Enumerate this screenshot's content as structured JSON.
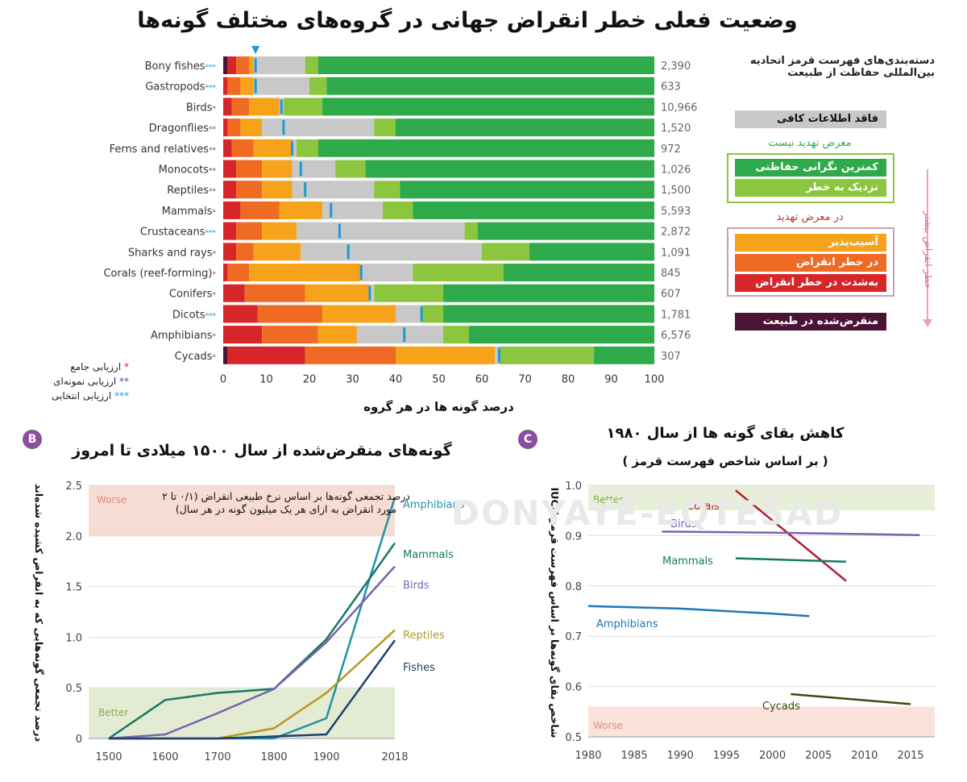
{
  "title": "وضعیت فعلی خطر انقراض جهانی در گروه‌های مختلف گونه‌ها",
  "chart_a": {
    "type": "bar",
    "stacked": true,
    "orientation": "horizontal",
    "xlabel": "درصد گونه ها در هر گروه",
    "xlim": [
      0,
      100
    ],
    "xticks": [
      "0",
      "10",
      "20",
      "30",
      "40",
      "50",
      "60",
      "70",
      "80",
      "90",
      "100"
    ],
    "segment_order": [
      "extinct",
      "critically_endangered",
      "endangered",
      "vulnerable",
      "data_deficient",
      "near_threatened",
      "least_concern"
    ],
    "colors": {
      "extinct": "#4a1535",
      "critically_endangered": "#d7262a",
      "endangered": "#ef6a22",
      "vulnerable": "#f7a21b",
      "data_deficient": "#c8c8c8",
      "near_threatened": "#8cc63e",
      "least_concern": "#2eaa4a",
      "marker": "#1b9ad6"
    },
    "groups": [
      {
        "name": "Bony fishes",
        "stars": "***",
        "count": "2,390",
        "segments": [
          1,
          2,
          3,
          1,
          12,
          3,
          78
        ],
        "marker": 7.5
      },
      {
        "name": "Gastropods",
        "stars": "***",
        "count": "633",
        "segments": [
          0,
          1,
          3,
          3,
          13,
          4,
          76
        ],
        "marker": 7.5
      },
      {
        "name": "Birds",
        "stars": "*",
        "count": "10,966",
        "segments": [
          0,
          2,
          4,
          7,
          1,
          9,
          77
        ],
        "marker": 13.5
      },
      {
        "name": "Dragonflies",
        "stars": "**",
        "count": "1,520",
        "segments": [
          0,
          1,
          3,
          5,
          26,
          5,
          60
        ],
        "marker": 14
      },
      {
        "name": "Ferns and relatives",
        "stars": "**",
        "count": "972",
        "segments": [
          0,
          2,
          5,
          9,
          1,
          5,
          78
        ],
        "marker": 16
      },
      {
        "name": "Monocots",
        "stars": "**",
        "count": "1,026",
        "segments": [
          0,
          3,
          6,
          7,
          10,
          7,
          67
        ],
        "marker": 18
      },
      {
        "name": "Reptiles",
        "stars": "**",
        "count": "1,500",
        "segments": [
          0,
          3,
          6,
          7,
          19,
          6,
          59
        ],
        "marker": 19
      },
      {
        "name": "Mammals",
        "stars": "*",
        "count": "5,593",
        "segments": [
          0,
          4,
          9,
          10,
          14,
          7,
          56
        ],
        "marker": 25
      },
      {
        "name": "Crustaceans",
        "stars": "***",
        "count": "2,872",
        "segments": [
          0,
          3,
          6,
          8,
          39,
          3,
          41
        ],
        "marker": 27
      },
      {
        "name": "Sharks and rays",
        "stars": "*",
        "count": "1,091",
        "segments": [
          0,
          3,
          4,
          11,
          42,
          11,
          29
        ],
        "marker": 29
      },
      {
        "name": "Corals (reef-forming)",
        "stars": "*",
        "count": "845",
        "segments": [
          0,
          1,
          5,
          26,
          12,
          21,
          35
        ],
        "marker": 32
      },
      {
        "name": "Conifers",
        "stars": "*",
        "count": "607",
        "segments": [
          0,
          5,
          14,
          15,
          1,
          16,
          49
        ],
        "marker": 34
      },
      {
        "name": "Dicots",
        "stars": "***",
        "count": "1,781",
        "segments": [
          0,
          8,
          15,
          17,
          6,
          5,
          49
        ],
        "marker": 46
      },
      {
        "name": "Amphibians",
        "stars": "*",
        "count": "6,576",
        "segments": [
          0,
          9,
          13,
          9,
          20,
          6,
          43
        ],
        "marker": 42
      },
      {
        "name": "Cycads",
        "stars": "*",
        "count": "307",
        "segments": [
          1,
          18,
          21,
          23,
          1,
          22,
          14
        ],
        "marker": 64
      }
    ],
    "star_key": [
      {
        "stars": "*",
        "label": "ارزیابی جامع",
        "color": "#d7262a"
      },
      {
        "stars": "**",
        "label": "ارزیابی نمونه‌ای",
        "color": "#6a3f8e"
      },
      {
        "stars": "***",
        "label": "ارزیابی انتخابی",
        "color": "#1b9ad6"
      }
    ],
    "legend": {
      "header": "دسته‌بندی‌های فهرست قرمز اتحادیه بین‌المللی حفاظت از طبیعت",
      "data_deficient": "فاقد اطلاعات کافی",
      "not_threatened_head": "معرض تهدید نیست",
      "least_concern": "کمترین نگرانی حفاظتی",
      "near_threatened": "نزدیک به خطر",
      "threatened_head": "در معرض تهدید",
      "vulnerable": "آسیب‌پذیر",
      "endangered": "در خطر انقراض",
      "critically_endangered": "به‌شدت در خطر انقراض",
      "extinct": "منقرض‌شده در طبیعت",
      "risk_arrow": "خطر انقراض بیشتر"
    }
  },
  "chart_b": {
    "badge": "B",
    "type": "line",
    "title": "گونه‌های منقرض‌شده از سال ۱۵۰۰ میلادی تا امروز",
    "ylabel": "درصد تجمعی گونه‌هایی که به انقراض کشیده شده‌اند",
    "annotation": "درصد تجمعی گونه‌ها بر اساس نرخ طبیعی انقراض (۰/۱ تا ۲ مورد انقراض به ازای هر یک میلیون گونه در هر سال)",
    "worse": "Worse",
    "better": "Better",
    "ylim": [
      0,
      2.5
    ],
    "yticks": [
      "0",
      "0.5",
      "1.0",
      "1.5",
      "2.0",
      "2.5"
    ],
    "xticks": [
      "1500",
      "1600",
      "1700",
      "1800",
      "1900",
      "2018"
    ],
    "series": [
      {
        "name": "Amphibians",
        "color": "#1f93a6",
        "points": [
          [
            1500,
            0
          ],
          [
            1600,
            0
          ],
          [
            1700,
            0
          ],
          [
            1800,
            0
          ],
          [
            1900,
            0.2
          ],
          [
            2018,
            2.38
          ]
        ]
      },
      {
        "name": "Mammals",
        "color": "#147a62",
        "points": [
          [
            1500,
            0
          ],
          [
            1600,
            0.38
          ],
          [
            1700,
            0.45
          ],
          [
            1800,
            0.49
          ],
          [
            1900,
            0.98
          ],
          [
            2018,
            1.93
          ]
        ]
      },
      {
        "name": "Birds",
        "color": "#7a63ad",
        "points": [
          [
            1500,
            0
          ],
          [
            1600,
            0.04
          ],
          [
            1700,
            0.25
          ],
          [
            1800,
            0.49
          ],
          [
            1900,
            0.95
          ],
          [
            2018,
            1.7
          ]
        ]
      },
      {
        "name": "Reptiles",
        "color": "#b59a22",
        "points": [
          [
            1500,
            0
          ],
          [
            1600,
            0
          ],
          [
            1700,
            0
          ],
          [
            1800,
            0.1
          ],
          [
            1900,
            0.45
          ],
          [
            2018,
            1.07
          ]
        ]
      },
      {
        "name": "Fishes",
        "color": "#1d3f6e",
        "points": [
          [
            1500,
            0
          ],
          [
            1600,
            0
          ],
          [
            1700,
            0
          ],
          [
            1800,
            0.02
          ],
          [
            1900,
            0.04
          ],
          [
            2018,
            0.97
          ]
        ]
      }
    ]
  },
  "chart_c": {
    "badge": "C",
    "type": "line",
    "title_line1": "کاهش بقای گونه ها از سال ۱۹۸۰",
    "title_line2": "( بر اساس شاخص فهرست قرمز )",
    "ylabel": "شاخص بقای گونه‌ها بر اساس فهرست قرمز IUCN",
    "better": "Better",
    "worse": "Worse",
    "ylim": [
      0.5,
      1.0
    ],
    "yticks": [
      "0.5",
      "0.6",
      "0.7",
      "0.8",
      "0.9",
      "1.0"
    ],
    "xticks": [
      "1980",
      "1985",
      "1990",
      "1995",
      "2000",
      "2005",
      "2010",
      "2015"
    ],
    "series": [
      {
        "name": "Corals",
        "color": "#b0202e",
        "points": [
          [
            1996,
            0.99
          ],
          [
            2008,
            0.81
          ]
        ]
      },
      {
        "name": "Birds",
        "color": "#7a63ad",
        "points": [
          [
            1988,
            0.908
          ],
          [
            2000,
            0.906
          ],
          [
            2010,
            0.903
          ],
          [
            2016,
            0.901
          ]
        ]
      },
      {
        "name": "Mammals",
        "color": "#147a62",
        "points": [
          [
            1996,
            0.855
          ],
          [
            2008,
            0.848
          ]
        ]
      },
      {
        "name": "Amphibians",
        "color": "#1b77b8",
        "points": [
          [
            1980,
            0.76
          ],
          [
            1990,
            0.755
          ],
          [
            2000,
            0.745
          ],
          [
            2004,
            0.74
          ]
        ]
      },
      {
        "name": "Cycads",
        "color": "#3b4a12",
        "points": [
          [
            2002,
            0.585
          ],
          [
            2015,
            0.565
          ]
        ]
      }
    ]
  },
  "watermark": "DONYAYE-EQTESAD"
}
